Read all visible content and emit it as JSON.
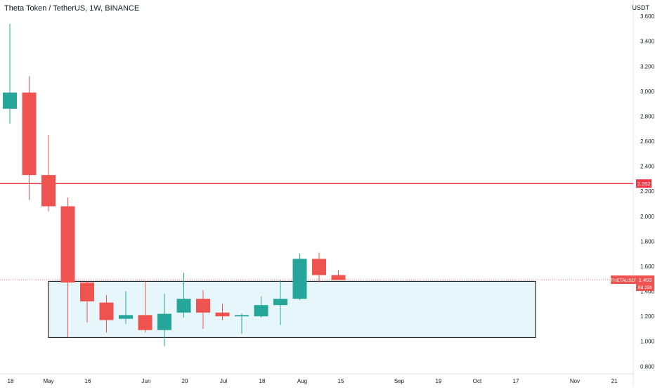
{
  "header": {
    "title": "Theta Token / TetherUS, 1W, BINANCE",
    "currency": "USDT"
  },
  "colors": {
    "up": "#26a69a",
    "down": "#ef5350",
    "resistance": "#f23645",
    "zone_fill": "#e6f6fa",
    "zone_border": "#000000",
    "axis_text": "#131722",
    "grid": "#e0e3eb"
  },
  "chart_data": {
    "type": "candlestick",
    "symbol": "THETAUSDT",
    "interval": "1W",
    "ylim": [
      0.74,
      3.73
    ],
    "y_ticks": [
      "3.600",
      "3.400",
      "3.200",
      "3.000",
      "2.800",
      "2.600",
      "2.400",
      "2.200",
      "2.000",
      "1.800",
      "1.600",
      "1.400",
      "1.200",
      "1.000",
      "0.800"
    ],
    "x_ticks": [
      "18",
      "May",
      "16",
      "Jun",
      "20",
      "Jul",
      "18",
      "Aug",
      "15",
      "Sep",
      "19",
      "Oct",
      "17",
      "Nov",
      "21"
    ],
    "candles": [
      {
        "o": 2.86,
        "h": 3.54,
        "l": 2.74,
        "c": 2.99
      },
      {
        "o": 2.99,
        "h": 3.12,
        "l": 2.13,
        "c": 2.33
      },
      {
        "o": 2.33,
        "h": 2.65,
        "l": 2.04,
        "c": 2.08
      },
      {
        "o": 2.08,
        "h": 2.15,
        "l": 1.03,
        "c": 1.47
      },
      {
        "o": 1.47,
        "h": 1.48,
        "l": 1.15,
        "c": 1.32
      },
      {
        "o": 1.31,
        "h": 1.37,
        "l": 1.07,
        "c": 1.17
      },
      {
        "o": 1.18,
        "h": 1.4,
        "l": 1.14,
        "c": 1.21
      },
      {
        "o": 1.21,
        "h": 1.48,
        "l": 1.07,
        "c": 1.09
      },
      {
        "o": 1.09,
        "h": 1.38,
        "l": 0.96,
        "c": 1.22
      },
      {
        "o": 1.23,
        "h": 1.55,
        "l": 1.19,
        "c": 1.34
      },
      {
        "o": 1.34,
        "h": 1.41,
        "l": 1.1,
        "c": 1.23
      },
      {
        "o": 1.23,
        "h": 1.3,
        "l": 1.17,
        "c": 1.2
      },
      {
        "o": 1.2,
        "h": 1.22,
        "l": 1.06,
        "c": 1.21
      },
      {
        "o": 1.2,
        "h": 1.36,
        "l": 1.19,
        "c": 1.29
      },
      {
        "o": 1.29,
        "h": 1.49,
        "l": 1.13,
        "c": 1.34
      },
      {
        "o": 1.34,
        "h": 1.7,
        "l": 1.33,
        "c": 1.66
      },
      {
        "o": 1.66,
        "h": 1.71,
        "l": 1.47,
        "c": 1.53
      },
      {
        "o": 1.53,
        "h": 1.57,
        "l": 1.49,
        "c": 1.49
      }
    ],
    "resistance_level": 2.262,
    "resistance_label": "2.262",
    "support_zone": {
      "low": 1.03,
      "high": 1.48
    },
    "current_price": 1.493,
    "price_label": "1.493",
    "symbol_label": "THETAUSDT",
    "countdown_label": "6d 15h"
  }
}
